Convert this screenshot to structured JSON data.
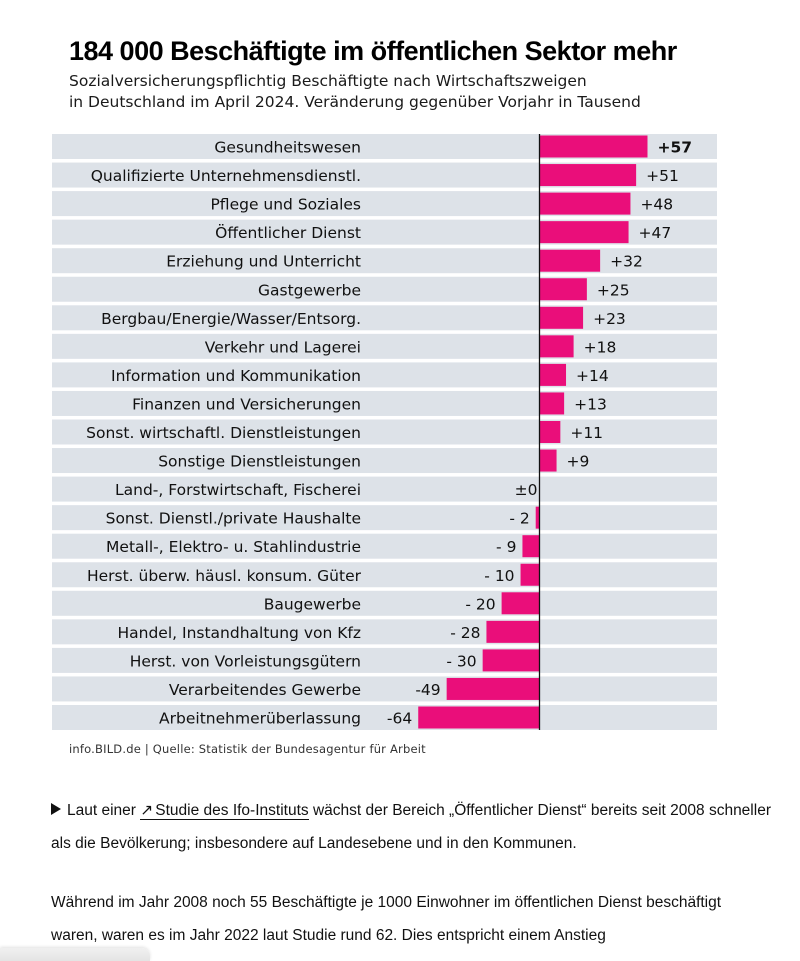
{
  "chart_data": {
    "type": "bar",
    "orientation": "horizontal",
    "title": "184 000 Beschäftigte im öffentlichen Sektor mehr",
    "subtitle_lines": [
      "Sozialversicherungspflichtig Beschäftigte nach Wirtschaftszweigen",
      "in Deutschland im April 2024. Veränderung gegenüber Vorjahr in Tausend"
    ],
    "categories": [
      "Gesundheitswesen",
      "Qualifizierte Unternehmensdienstl.",
      "Pflege und Soziales",
      "Öffentlicher Dienst",
      "Erziehung und Unterricht",
      "Gastgewerbe",
      "Bergbau/Energie/Wasser/Entsorg.",
      "Verkehr und Lagerei",
      "Information und Kommunikation",
      "Finanzen und Versicherungen",
      "Sonst. wirtschaftl. Dienstleistungen",
      "Sonstige Dienstleistungen",
      "Land-, Forstwirtschaft, Fischerei",
      "Sonst. Dienstl./private Haushalte",
      "Metall-, Elektro- u. Stahlindustrie",
      "Herst. überw. häusl. konsum. Güter",
      "Baugewerbe",
      "Handel, Instandhaltung von Kfz",
      "Herst. von Vorleistungsgütern",
      "Verarbeitendes Gewerbe",
      "Arbeitnehmerüberlassung"
    ],
    "values": [
      57,
      51,
      48,
      47,
      32,
      25,
      23,
      18,
      14,
      13,
      11,
      9,
      0,
      -2,
      -9,
      -10,
      -20,
      -28,
      -30,
      -49,
      -64
    ],
    "value_labels": [
      "+57",
      "+51",
      "+48",
      "+47",
      "+32",
      "+25",
      "+23",
      "+18",
      "+14",
      "+13",
      "+11",
      "+9",
      "±0",
      "- 2",
      "- 9",
      "- 10",
      "- 20",
      "- 28",
      "- 30",
      "-49",
      "-64"
    ],
    "highlight_index": 0,
    "xlim": [
      -64,
      57
    ],
    "colors": {
      "bar": "#ea0e7a",
      "row_band": "#dde2e8",
      "zero_line": "#111111"
    }
  },
  "source": "info.BILD.de | Quelle: Statistik der Bundesagentur für Arbeit",
  "article": {
    "para1_before_link": "Laut einer",
    "link_text": "Studie des Ifo-Instituts",
    "para1_after_link": "wächst der Bereich „Öffentlicher Dienst“ bereits seit 2008 schneller als die Bevölkerung; insbesondere auf Landesebene und in den Kommunen.",
    "para2": "Während im Jahr 2008 noch 55 Beschäftigte je 1000 Einwohner im öffentlichen Dienst beschäftigt waren, waren es im Jahr 2022 laut Studie rund 62. Dies entspricht einem Anstieg"
  }
}
